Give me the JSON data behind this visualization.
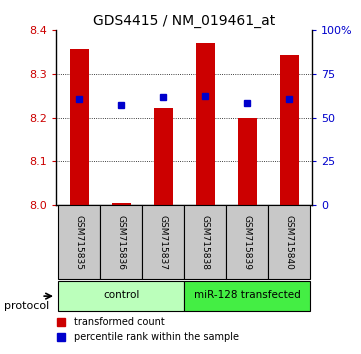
{
  "title": "GDS4415 / NM_019461_at",
  "samples": [
    "GSM715835",
    "GSM715836",
    "GSM715837",
    "GSM715838",
    "GSM715839",
    "GSM715840"
  ],
  "red_values": [
    8.357,
    8.005,
    8.222,
    8.37,
    8.2,
    8.342
  ],
  "blue_values": [
    60.5,
    57.0,
    62.0,
    62.5,
    58.5,
    60.5
  ],
  "ylim_left": [
    8.0,
    8.4
  ],
  "ylim_right": [
    0,
    100
  ],
  "yticks_left": [
    8.0,
    8.1,
    8.2,
    8.3,
    8.4
  ],
  "yticks_right": [
    0,
    25,
    50,
    75,
    100
  ],
  "ytick_labels_right": [
    "0",
    "25",
    "50",
    "75",
    "100%"
  ],
  "grid_lines": [
    8.1,
    8.2,
    8.3
  ],
  "groups": [
    {
      "label": "control",
      "indices": [
        0,
        1,
        2
      ],
      "color": "#bbffbb"
    },
    {
      "label": "miR-128 transfected",
      "indices": [
        3,
        4,
        5
      ],
      "color": "#44ee44"
    }
  ],
  "protocol_label": "protocol",
  "legend_red": "transformed count",
  "legend_blue": "percentile rank within the sample",
  "bar_color": "#cc0000",
  "blue_color": "#0000cc",
  "bar_width": 0.45,
  "tick_label_color_left": "#cc0000",
  "tick_label_color_right": "#0000cc",
  "group_bg": "#c8c8c8"
}
